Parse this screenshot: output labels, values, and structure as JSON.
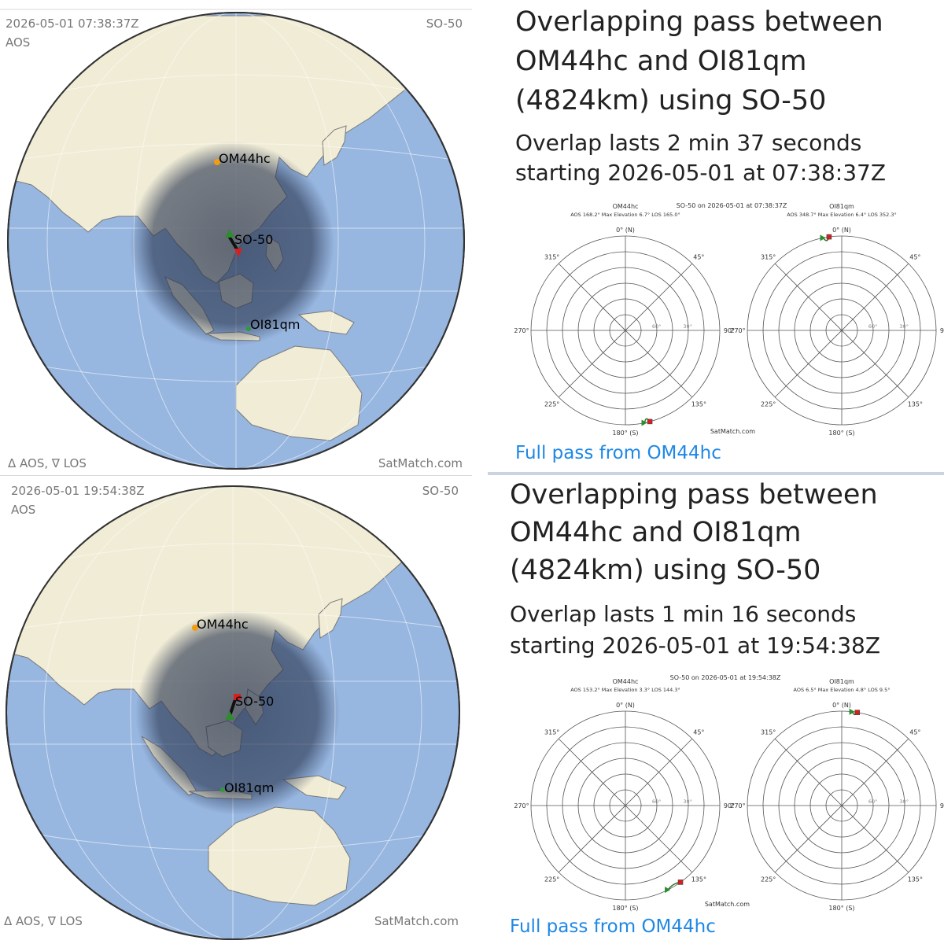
{
  "panels": [
    {
      "map": {
        "timestamp": "2026-05-01 07:38:37Z",
        "event": "AOS",
        "satellite": "SO-50",
        "station_a": "OM44hc",
        "station_b": "OI81qm",
        "legend": "Δ AOS, ∇ LOS",
        "credit": "SatMatch.com"
      },
      "info": {
        "title_line1": "Overlapping pass between",
        "title_line2": "OM44hc and OI81qm",
        "title_line3": "(4824km) using SO-50",
        "overlap_line1": "Overlap lasts 2 min 37 seconds",
        "overlap_line2": "starting 2026-05-01 at 07:38:37Z",
        "link": "Full pass from OM44hc",
        "polar": {
          "header": "SO-50 on 2026-05-01 at 07:38:37Z",
          "credit": "SatMatch.com",
          "left": {
            "name": "OM44hc",
            "stats": "AOS 168.2° Max Elevation 6.7° LOS 165.0°",
            "aos_az": 168.2,
            "max_el": 6.7,
            "los_az": 165.0
          },
          "right": {
            "name": "OI81qm",
            "stats": "AOS 348.7° Max Elevation 6.4° LOS 352.3°",
            "aos_az": 348.7,
            "max_el": 6.4,
            "los_az": 352.3
          }
        }
      }
    },
    {
      "map": {
        "timestamp": "2026-05-01 19:54:38Z",
        "event": "AOS",
        "satellite": "SO-50",
        "station_a": "OM44hc",
        "station_b": "OI81qm",
        "legend": "Δ AOS, ∇ LOS",
        "credit": "SatMatch.com"
      },
      "info": {
        "title_line1": "Overlapping pass between",
        "title_line2": "OM44hc and OI81qm",
        "title_line3": "(4824km) using SO-50",
        "overlap_line1": "Overlap lasts 1 min 16 seconds",
        "overlap_line2": "starting 2026-05-01 at 19:54:38Z",
        "link": "Full pass from OM44hc",
        "polar": {
          "header": "SO-50 on 2026-05-01 at 19:54:38Z",
          "credit": "SatMatch.com",
          "left": {
            "name": "OM44hc",
            "stats": "AOS 153.2° Max Elevation 3.3° LOS 144.3°",
            "aos_az": 153.2,
            "max_el": 3.3,
            "los_az": 144.3
          },
          "right": {
            "name": "OI81qm",
            "stats": "AOS 6.5° Max Elevation 4.8° LOS 9.5°",
            "aos_az": 6.5,
            "max_el": 4.8,
            "los_az": 9.5
          }
        }
      }
    }
  ],
  "polar_labels": {
    "n": "0° (N)",
    "ne": "45°",
    "e": "90°",
    "se": "135°",
    "s": "180° (S)",
    "sw": "225°",
    "w": "270°",
    "nw": "315°",
    "ring60": "60°",
    "ring30": "30°"
  },
  "colors": {
    "ocean": "#97b6e0",
    "land": "#f0ecd6",
    "coverage": "#2a3650",
    "station_a": "#f39c12",
    "station_b": "#2e9a3a",
    "aos_marker": "#2e8b2e",
    "los_marker": "#d62020",
    "link": "#1e88e5"
  }
}
